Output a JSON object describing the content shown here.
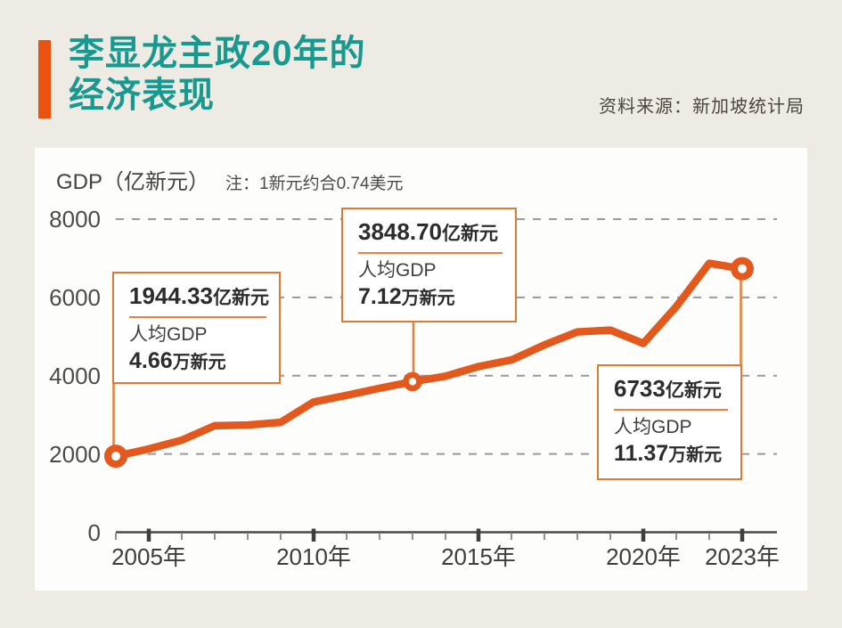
{
  "header": {
    "title_line1": "李显龙主政20年的",
    "title_line2": "经济表现",
    "source": "资料来源：新加坡统计局",
    "accent_color": "#e9530f",
    "title_color": "#18998f"
  },
  "card": {
    "axis_title": "GDP（亿新元）",
    "note": "注：1新元约合0.74美元"
  },
  "chart_data": {
    "type": "line",
    "title": "李显龙主政20年的经济表现",
    "ylabel": "GDP（亿新元）",
    "x": [
      2004,
      2005,
      2006,
      2007,
      2008,
      2009,
      2010,
      2011,
      2012,
      2013,
      2014,
      2015,
      2016,
      2017,
      2018,
      2019,
      2020,
      2021,
      2022,
      2023
    ],
    "values": [
      1944.33,
      2127,
      2354,
      2721,
      2740,
      2808,
      3328,
      3499,
      3677,
      3848.7,
      3988,
      4234,
      4401,
      4786,
      5119,
      5165,
      4825,
      5765,
      6872,
      6733
    ],
    "ylim": [
      0,
      8000
    ],
    "yticks": [
      0,
      2000,
      4000,
      6000,
      8000
    ],
    "xtick_labels": [
      {
        "year": 2005,
        "label": "2005年"
      },
      {
        "year": 2010,
        "label": "2010年"
      },
      {
        "year": 2015,
        "label": "2015年"
      },
      {
        "year": 2020,
        "label": "2020年"
      },
      {
        "year": 2023,
        "label": "2023年"
      }
    ],
    "grid": "horizontal-dashed",
    "legend": "none",
    "line_color": "#e3591d",
    "highlighted_years": [
      2004,
      2013,
      2023
    ]
  },
  "annotations": [
    {
      "year": 2004,
      "value_number": "1944.33",
      "value_unit": "亿新元",
      "percap_label": "人均GDP",
      "percap_number": "4.66",
      "percap_unit": "万新元"
    },
    {
      "year": 2013,
      "value_number": "3848.70",
      "value_unit": "亿新元",
      "percap_label": "人均GDP",
      "percap_number": "7.12",
      "percap_unit": "万新元"
    },
    {
      "year": 2023,
      "value_number": "6733",
      "value_unit": "亿新元",
      "percap_label": "人均GDP",
      "percap_number": "11.37",
      "percap_unit": "万新元"
    }
  ]
}
